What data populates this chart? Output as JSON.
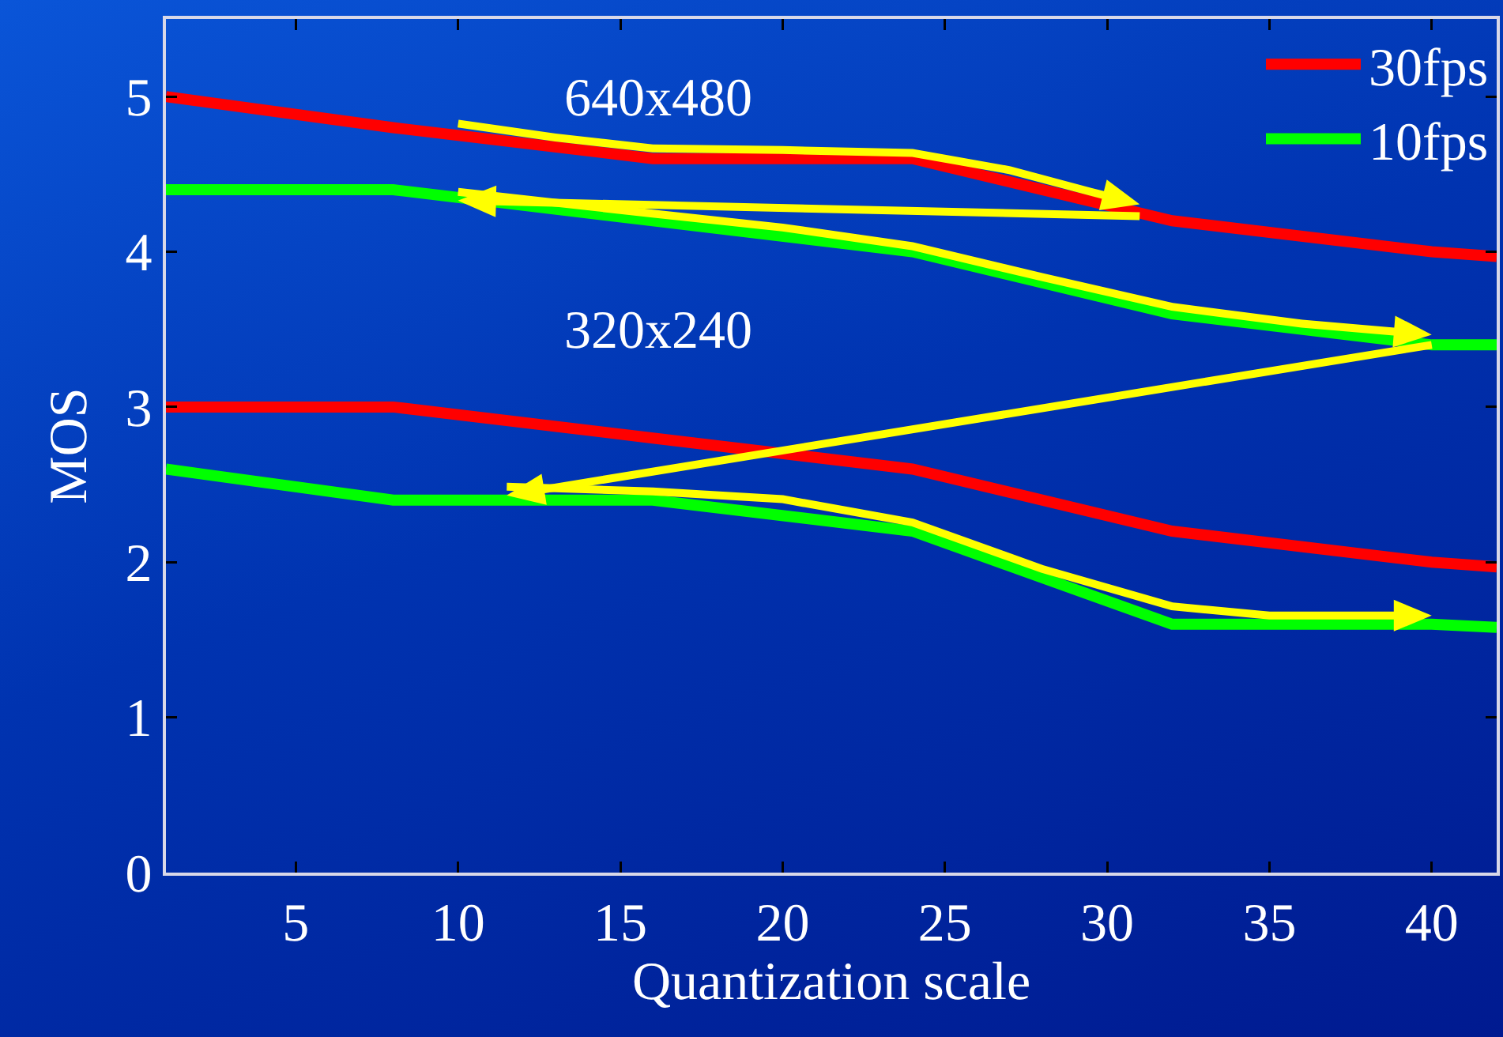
{
  "chart_data": {
    "type": "line",
    "xlabel": "Quantization scale",
    "ylabel": "MOS",
    "x": [
      1,
      8,
      16,
      24,
      32,
      40,
      42
    ],
    "series": [
      {
        "name": "30fps",
        "color": "#ff0000",
        "values": [
          5.0,
          4.8,
          4.6,
          4.6,
          4.2,
          4.0,
          3.97
        ]
      },
      {
        "name": "10fps",
        "color": "#00ff00",
        "values": [
          4.4,
          4.4,
          4.2,
          4.0,
          3.6,
          3.4,
          3.4
        ]
      },
      {
        "color": "#ff0000",
        "values": [
          3.0,
          3.0,
          2.8,
          2.6,
          2.2,
          2.0,
          1.97
        ]
      },
      {
        "color": "#00ff00",
        "values": [
          2.6,
          2.4,
          2.4,
          2.2,
          1.6,
          1.6,
          1.58
        ]
      }
    ],
    "annotations": [
      "640x480",
      "320x240"
    ],
    "xlim": [
      1,
      42
    ],
    "xticks": [
      5,
      10,
      15,
      20,
      25,
      30,
      35,
      40
    ],
    "ylim": [
      0,
      5.5
    ],
    "yticks": [
      0,
      1,
      2,
      3,
      4,
      5
    ],
    "grid": false,
    "legend": "top right",
    "marker": "none",
    "line_style": "solid"
  }
}
